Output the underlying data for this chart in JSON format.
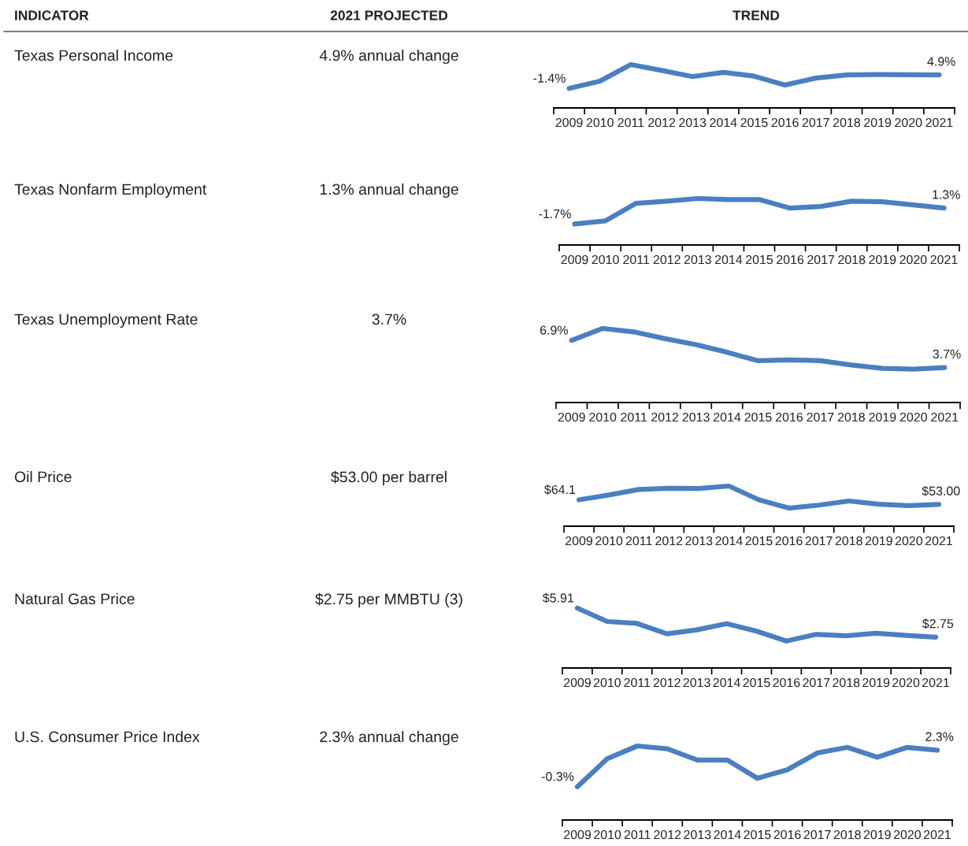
{
  "chart_data": [
    {
      "type": "other",
      "annotations": [
        "INDICATOR",
        "2021 PROJECTED",
        "TREND",
        "Texas Personal Income",
        "4.9% annual change",
        "Texas Nonfarm Employment",
        "1.3% annual change",
        "Texas Unemployment Rate",
        "3.7%",
        "Oil Price",
        "$53.00 per barrel",
        "Natural Gas Price",
        "$2.75 per MMBTU (3)",
        "U.S. Consumer Price Index",
        "2.3% annual change"
      ]
    },
    {
      "type": "line",
      "categories": [
        "2009",
        "2010",
        "2011",
        "2012",
        "2013",
        "2014",
        "2015",
        "2016",
        "2017",
        "2018",
        "2019",
        "2020",
        "2021"
      ],
      "values": [
        -1.4,
        2.0,
        9.7,
        7.0,
        4.1,
        6.1,
        4.3,
        0.2,
        3.4,
        4.9,
        5.1,
        5.0,
        4.9
      ],
      "value_labels": [
        "-1.4%",
        null,
        null,
        null,
        null,
        null,
        null,
        null,
        null,
        null,
        null,
        null,
        "4.9%"
      ],
      "color": "#4a7fc1",
      "grid": false,
      "legend": false,
      "marker": "none",
      "line_style": "solid"
    },
    {
      "type": "line",
      "categories": [
        "2009",
        "2010",
        "2011",
        "2012",
        "2013",
        "2014",
        "2015",
        "2016",
        "2017",
        "2018",
        "2019",
        "2020",
        "2021"
      ],
      "values": [
        -1.7,
        -1.1,
        2.2,
        2.6,
        3.1,
        2.9,
        2.9,
        1.3,
        1.6,
        2.6,
        2.5,
        1.9,
        1.3
      ],
      "value_labels": [
        "-1.7%",
        null,
        null,
        null,
        null,
        null,
        null,
        null,
        null,
        null,
        null,
        null,
        "1.3%"
      ],
      "color": "#4a7fc1",
      "grid": false,
      "legend": false,
      "marker": "none",
      "line_style": "solid"
    },
    {
      "type": "line",
      "categories": [
        "2009",
        "2010",
        "2011",
        "2012",
        "2013",
        "2014",
        "2015",
        "2016",
        "2017",
        "2018",
        "2019",
        "2020",
        "2021"
      ],
      "values": [
        6.9,
        8.3,
        7.9,
        7.1,
        6.4,
        5.5,
        4.5,
        4.6,
        4.5,
        4.0,
        3.6,
        3.5,
        3.7
      ],
      "value_labels": [
        "6.9%",
        null,
        null,
        null,
        null,
        null,
        null,
        null,
        null,
        null,
        null,
        null,
        "3.7%"
      ],
      "color": "#4a7fc1",
      "grid": false,
      "legend": false,
      "marker": "none",
      "line_style": "solid"
    },
    {
      "type": "line",
      "categories": [
        "2009",
        "2010",
        "2011",
        "2012",
        "2013",
        "2014",
        "2015",
        "2016",
        "2017",
        "2018",
        "2019",
        "2020",
        "2021"
      ],
      "values": [
        64.1,
        75.8,
        89.1,
        91.8,
        91.3,
        97.4,
        64.1,
        44.1,
        51.3,
        61.3,
        53.5,
        50.2,
        53.0
      ],
      "value_labels": [
        "$64.1",
        null,
        null,
        null,
        null,
        null,
        null,
        null,
        null,
        null,
        null,
        null,
        "$53.00"
      ],
      "color": "#4a7fc1",
      "grid": false,
      "legend": false,
      "marker": "none",
      "line_style": "solid"
    },
    {
      "type": "line",
      "categories": [
        "2009",
        "2010",
        "2011",
        "2012",
        "2013",
        "2014",
        "2015",
        "2016",
        "2017",
        "2018",
        "2019",
        "2020",
        "2021"
      ],
      "values": [
        5.91,
        4.45,
        4.24,
        3.11,
        3.54,
        4.21,
        3.39,
        2.32,
        3.05,
        2.9,
        3.18,
        2.93,
        2.75
      ],
      "value_labels": [
        "$5.91",
        null,
        null,
        null,
        null,
        null,
        null,
        null,
        null,
        null,
        null,
        null,
        "$2.75"
      ],
      "color": "#4a7fc1",
      "grid": false,
      "legend": false,
      "marker": "none",
      "line_style": "solid"
    },
    {
      "type": "line",
      "categories": [
        "2009",
        "2010",
        "2011",
        "2012",
        "2013",
        "2014",
        "2015",
        "2016",
        "2017",
        "2018",
        "2019",
        "2020",
        "2021"
      ],
      "values": [
        -0.3,
        1.7,
        2.6,
        2.4,
        1.6,
        1.6,
        0.3,
        0.9,
        2.1,
        2.5,
        1.8,
        2.5,
        2.3
      ],
      "value_labels": [
        "-0.3%",
        null,
        null,
        null,
        null,
        null,
        null,
        null,
        null,
        null,
        null,
        null,
        "2.3%"
      ],
      "color": "#4a7fc1",
      "grid": false,
      "legend": false,
      "marker": "none",
      "line_style": "solid"
    }
  ]
}
